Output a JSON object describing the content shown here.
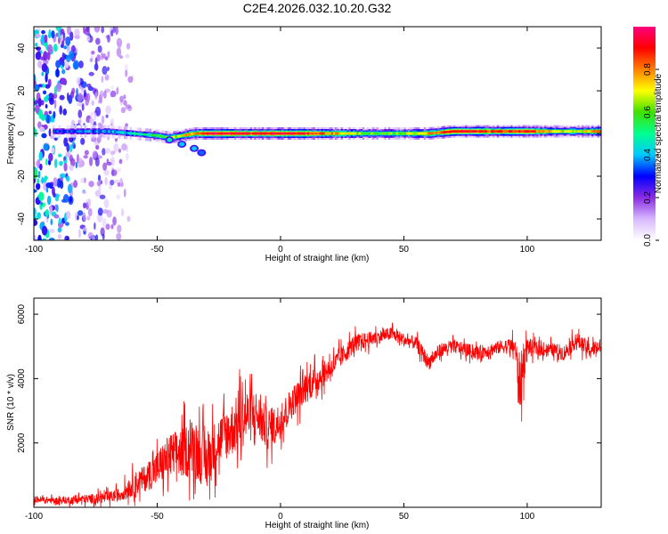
{
  "figure_title": "C2E4.2026.032.10.20.G32",
  "chart_data": [
    {
      "type": "heatmap",
      "panel": "spectrogram",
      "xlabel": "Height of straight line (km)",
      "ylabel": "Frequency (Hz)",
      "xlim": [
        -100,
        130
      ],
      "ylim": [
        -50,
        50
      ],
      "xticks": [
        -100,
        -50,
        0,
        50,
        100
      ],
      "yticks": [
        -40,
        -20,
        0,
        20,
        40
      ],
      "colorbar": {
        "label": "Normalized spectral amplitude",
        "range": [
          0,
          1
        ],
        "ticks": [
          "0.0",
          "0.2",
          "0.4",
          "0.6",
          "0.8"
        ],
        "colors": [
          "#ffffff",
          "#d8b8ff",
          "#8a2be2",
          "#0000ff",
          "#00c8ff",
          "#00ff90",
          "#40e000",
          "#ffff00",
          "#ff8000",
          "#ff0000",
          "#ff0080"
        ]
      },
      "ridge": {
        "description": "dominant frequency ridge near 0 Hz",
        "x": [
          -92,
          -80,
          -70,
          -60,
          -50,
          -45,
          -40,
          -35,
          -30,
          -20,
          -10,
          0,
          10,
          20,
          40,
          60,
          70,
          80,
          90,
          100,
          110,
          120,
          130
        ],
        "freq_hz": [
          1,
          1,
          1,
          0,
          -1,
          -2,
          -1,
          0,
          0,
          0,
          0,
          0,
          0,
          0,
          0,
          0,
          1,
          1,
          1,
          1,
          1,
          1,
          1
        ],
        "amplitude": [
          0.3,
          0.35,
          0.4,
          0.45,
          0.55,
          0.6,
          0.7,
          0.8,
          0.95,
          0.95,
          0.9,
          0.95,
          0.9,
          0.8,
          0.55,
          0.75,
          0.95,
          0.9,
          0.85,
          0.9,
          0.7,
          0.65,
          0.8
        ]
      },
      "branch": {
        "description": "short descending branch",
        "x": [
          -45,
          -40,
          -35,
          -32
        ],
        "freq_hz": [
          -3,
          -5,
          -7,
          -9
        ],
        "amplitude": [
          0.45,
          0.4,
          0.4,
          0.35
        ]
      },
      "noise_region_x": [
        -100,
        -60
      ]
    },
    {
      "type": "line",
      "panel": "snr",
      "xlabel": "Height of straight line (km)",
      "ylabel": "SNR (10 * v/v)",
      "xlim": [
        -100,
        130
      ],
      "ylim": [
        0,
        6500
      ],
      "xticks": [
        -100,
        -50,
        0,
        50,
        100
      ],
      "yticks": [
        2000,
        4000,
        6000
      ],
      "series": [
        {
          "name": "SNR",
          "color": "#ff0000",
          "x": [
            -100,
            -90,
            -80,
            -70,
            -65,
            -60,
            -55,
            -50,
            -45,
            -40,
            -35,
            -30,
            -25,
            -20,
            -15,
            -10,
            -5,
            0,
            5,
            10,
            15,
            20,
            25,
            30,
            35,
            40,
            45,
            50,
            55,
            60,
            65,
            70,
            75,
            80,
            85,
            90,
            95,
            97,
            100,
            105,
            110,
            115,
            120,
            125,
            130
          ],
          "y": [
            250,
            200,
            250,
            300,
            400,
            700,
            900,
            1200,
            1600,
            1700,
            1900,
            1400,
            2100,
            2400,
            2800,
            2900,
            2400,
            2700,
            3300,
            3700,
            4000,
            4300,
            4700,
            5100,
            5200,
            5300,
            5400,
            5200,
            5100,
            4500,
            4900,
            5000,
            4900,
            4800,
            4900,
            5000,
            5000,
            3800,
            5000,
            4900,
            4900,
            4800,
            5200,
            4900,
            5000
          ],
          "noise": [
            150,
            150,
            200,
            250,
            300,
            500,
            600,
            800,
            1000,
            1100,
            1300,
            1300,
            1100,
            1200,
            1300,
            1100,
            900,
            800,
            700,
            700,
            600,
            500,
            450,
            400,
            350,
            300,
            300,
            300,
            300,
            350,
            300,
            300,
            300,
            300,
            300,
            300,
            400,
            1400,
            400,
            300,
            300,
            350,
            350,
            350,
            350
          ]
        }
      ]
    }
  ]
}
